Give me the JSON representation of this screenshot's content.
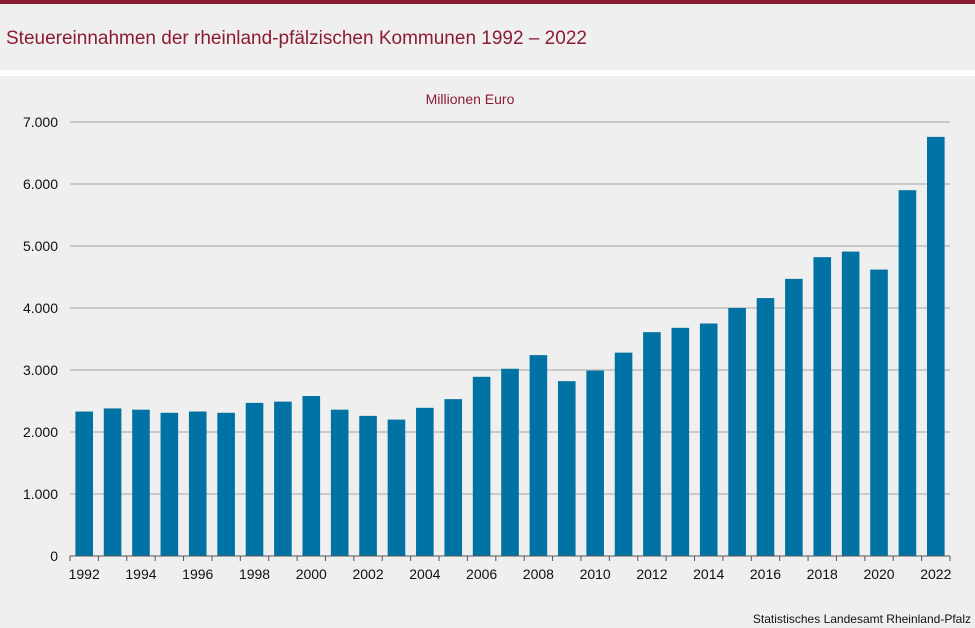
{
  "header": {
    "title": "Steuereinnahmen der rheinland-pfälzischen Kommunen 1992 – 2022"
  },
  "footer": {
    "source": "Statistisches Landesamt  Rheinland-Pfalz"
  },
  "colors": {
    "accent": "#8c1c32",
    "bar": "#0072a3",
    "grid": "#a6a6a6",
    "background": "#efefef"
  },
  "chart_data": {
    "type": "bar",
    "title": "Steuereinnahmen der rheinland-pfälzischen Kommunen 1992 – 2022",
    "unit_label": "Millionen  Euro",
    "xlabel": "",
    "ylabel": "Millionen  Euro",
    "ylim": [
      0,
      7000
    ],
    "y_ticks": [
      0,
      1000,
      2000,
      3000,
      4000,
      5000,
      6000,
      7000
    ],
    "y_tick_labels": [
      "0",
      "1.000",
      "2.000",
      "3.000",
      "4.000",
      "5.000",
      "6.000",
      "7.000"
    ],
    "grid": true,
    "legend": "none",
    "categories": [
      "1992",
      "1993",
      "1994",
      "1995",
      "1996",
      "1997",
      "1998",
      "1999",
      "2000",
      "2001",
      "2002",
      "2003",
      "2004",
      "2005",
      "2006",
      "2007",
      "2008",
      "2009",
      "2010",
      "2011",
      "2012",
      "2013",
      "2014",
      "2015",
      "2016",
      "2017",
      "2018",
      "2019",
      "2020",
      "2021",
      "2022"
    ],
    "x_tick_labels": [
      "1992",
      "1994",
      "1996",
      "1998",
      "2000",
      "2002",
      "2004",
      "2006",
      "2008",
      "2010",
      "2012",
      "2014",
      "2016",
      "2018",
      "2020",
      "2022"
    ],
    "values": [
      2330,
      2380,
      2360,
      2310,
      2330,
      2310,
      2470,
      2490,
      2580,
      2360,
      2260,
      2200,
      2390,
      2530,
      2890,
      3020,
      3240,
      2820,
      2990,
      3280,
      3610,
      3680,
      3750,
      4000,
      4160,
      4470,
      4820,
      4910,
      4620,
      5900,
      6760
    ]
  }
}
